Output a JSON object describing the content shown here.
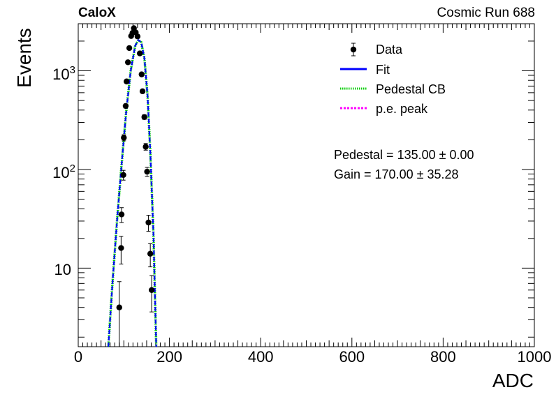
{
  "corner_left": "CaloX",
  "corner_right": "Cosmic Run 688",
  "fit_text": [
    "Pedestal = 135.00 ± 0.00",
    "Gain = 170.00 ± 35.28"
  ],
  "chart_data": {
    "type": "scatter",
    "xlabel": "ADC",
    "ylabel": "Events",
    "xlim": [
      0,
      1000
    ],
    "ylim": [
      1.6,
      3000
    ],
    "yscale": "log",
    "x_ticks": [
      "0",
      "200",
      "400",
      "600",
      "800",
      "1000"
    ],
    "y_ticks": [
      {
        "value": 10,
        "base": "10",
        "exp": ""
      },
      {
        "value": 100,
        "base": "10",
        "exp": "2"
      },
      {
        "value": 1000,
        "base": "10",
        "exp": "3"
      }
    ],
    "legend": {
      "position": "top-right",
      "entries": [
        {
          "label": "Data",
          "style": "marker",
          "color": "#000000"
        },
        {
          "label": "Fit",
          "style": "line",
          "color": "#0000ff"
        },
        {
          "label": "Pedestal CB",
          "style": "dotted",
          "color": "#00cc00"
        },
        {
          "label": "p.e. peak",
          "style": "dashed",
          "color": "#ff00ff"
        }
      ]
    },
    "series": [
      {
        "name": "Data",
        "kind": "points",
        "points": [
          {
            "x": 90,
            "y": 4,
            "err": 3.3
          },
          {
            "x": 94,
            "y": 16,
            "err": 5
          },
          {
            "x": 95,
            "y": 35,
            "err": 6
          },
          {
            "x": 99,
            "y": 88,
            "err": 10
          },
          {
            "x": 100,
            "y": 210,
            "err": 15
          },
          {
            "x": 104,
            "y": 440,
            "err": 21
          },
          {
            "x": 106,
            "y": 780,
            "err": 28
          },
          {
            "x": 109,
            "y": 1220,
            "err": 35
          },
          {
            "x": 112,
            "y": 1700,
            "err": 41
          },
          {
            "x": 116,
            "y": 2250,
            "err": 47
          },
          {
            "x": 119,
            "y": 2420,
            "err": 49
          },
          {
            "x": 122,
            "y": 2700,
            "err": 52
          },
          {
            "x": 126,
            "y": 2450,
            "err": 49
          },
          {
            "x": 130,
            "y": 2230,
            "err": 47
          },
          {
            "x": 135,
            "y": 1500,
            "err": 39
          },
          {
            "x": 139,
            "y": 920,
            "err": 30
          },
          {
            "x": 141,
            "y": 620,
            "err": 25
          },
          {
            "x": 145,
            "y": 340,
            "err": 18
          },
          {
            "x": 148,
            "y": 170,
            "err": 13
          },
          {
            "x": 151,
            "y": 95,
            "err": 10
          },
          {
            "x": 154,
            "y": 29,
            "err": 5.4
          },
          {
            "x": 158,
            "y": 14,
            "err": 3.7
          },
          {
            "x": 161,
            "y": 6,
            "err": 2.4
          }
        ]
      },
      {
        "name": "Fit",
        "kind": "curve",
        "points": [
          [
            66,
            1.6
          ],
          [
            75,
            7
          ],
          [
            85,
            30
          ],
          [
            95,
            110
          ],
          [
            105,
            380
          ],
          [
            115,
            1000
          ],
          [
            125,
            1800
          ],
          [
            132,
            2050
          ],
          [
            138,
            1950
          ],
          [
            145,
            1350
          ],
          [
            152,
            550
          ],
          [
            158,
            150
          ],
          [
            165,
            22
          ],
          [
            171,
            1.6
          ]
        ]
      },
      {
        "name": "Pedestal CB",
        "kind": "curve",
        "points": [
          [
            66,
            1.6
          ],
          [
            75,
            7
          ],
          [
            85,
            30
          ],
          [
            95,
            110
          ],
          [
            105,
            380
          ],
          [
            115,
            1000
          ],
          [
            125,
            1800
          ],
          [
            132,
            2050
          ],
          [
            138,
            1950
          ],
          [
            145,
            1350
          ],
          [
            152,
            550
          ],
          [
            158,
            150
          ],
          [
            165,
            22
          ],
          [
            171,
            1.6
          ]
        ]
      }
    ]
  }
}
